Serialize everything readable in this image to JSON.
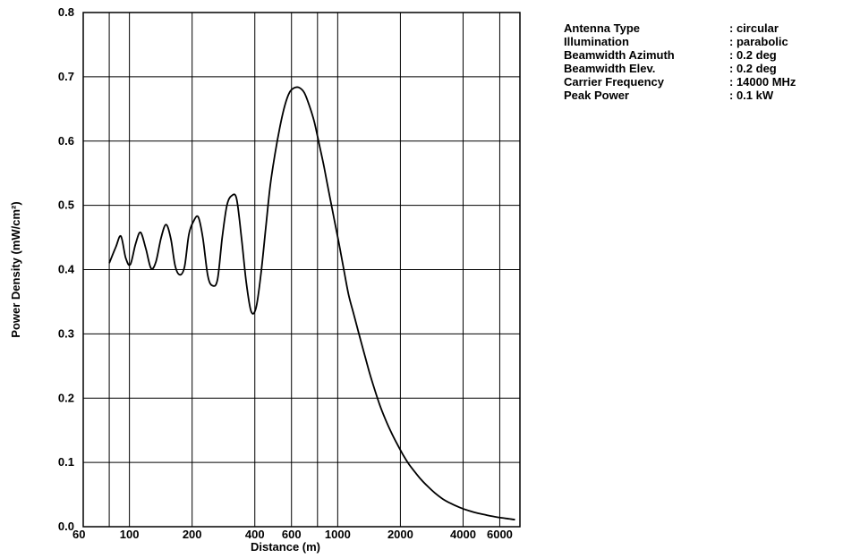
{
  "chart_data": {
    "type": "line",
    "title": "",
    "xlabel": "Distance (m)",
    "ylabel": "Power Density (mW/cm²)",
    "x_scale": "log",
    "xlim": [
      60,
      7500
    ],
    "ylim": [
      0,
      0.8
    ],
    "x_ticks": [
      {
        "value": 60,
        "label": "60"
      },
      {
        "value": 100,
        "label": "100"
      },
      {
        "value": 200,
        "label": "200"
      },
      {
        "value": 400,
        "label": "400"
      },
      {
        "value": 600,
        "label": "600"
      },
      {
        "value": 1000,
        "label": "1000"
      },
      {
        "value": 2000,
        "label": "2000"
      },
      {
        "value": 4000,
        "label": "4000"
      },
      {
        "value": 6000,
        "label": "6000"
      }
    ],
    "x_gridlines": [
      80,
      100,
      200,
      400,
      600,
      800,
      1000,
      2000,
      4000,
      6000
    ],
    "y_ticks": [
      {
        "value": 0.0,
        "label": "0.0"
      },
      {
        "value": 0.1,
        "label": "0.1"
      },
      {
        "value": 0.2,
        "label": "0.2"
      },
      {
        "value": 0.3,
        "label": "0.3"
      },
      {
        "value": 0.4,
        "label": "0.4"
      },
      {
        "value": 0.5,
        "label": "0.5"
      },
      {
        "value": 0.6,
        "label": "0.6"
      },
      {
        "value": 0.7,
        "label": "0.7"
      },
      {
        "value": 0.8,
        "label": "0.8"
      }
    ],
    "grid": true,
    "series": [
      {
        "color": "#000000",
        "x": [
          80,
          86,
          91,
          96,
          101,
          107,
          113,
          120,
          127,
          134,
          142,
          150,
          158,
          166,
          175,
          184,
          193,
          203,
          214,
          225,
          238,
          251,
          265,
          279,
          294,
          310,
          327,
          345,
          364,
          384,
          405,
          427,
          450,
          474,
          500,
          528,
          557,
          588,
          621,
          655,
          692,
          731,
          772,
          815,
          860,
          908,
          960,
          1015,
          1070,
          1130,
          1195,
          1265,
          1340,
          1420,
          1500,
          1590,
          1690,
          1800,
          1920,
          2050,
          2190,
          2350,
          2520,
          2720,
          2940,
          3200,
          3500,
          3850,
          4250,
          4700,
          5200,
          5800,
          6400,
          7100
        ],
        "y": [
          0.41,
          0.435,
          0.452,
          0.418,
          0.408,
          0.44,
          0.458,
          0.432,
          0.402,
          0.412,
          0.45,
          0.47,
          0.448,
          0.405,
          0.392,
          0.405,
          0.455,
          0.475,
          0.482,
          0.45,
          0.39,
          0.375,
          0.385,
          0.45,
          0.5,
          0.515,
          0.51,
          0.45,
          0.38,
          0.335,
          0.34,
          0.39,
          0.46,
          0.53,
          0.58,
          0.622,
          0.655,
          0.676,
          0.683,
          0.683,
          0.675,
          0.655,
          0.63,
          0.595,
          0.56,
          0.52,
          0.48,
          0.44,
          0.4,
          0.36,
          0.33,
          0.3,
          0.27,
          0.24,
          0.215,
          0.19,
          0.168,
          0.148,
          0.13,
          0.113,
          0.098,
          0.085,
          0.073,
          0.062,
          0.052,
          0.043,
          0.036,
          0.03,
          0.025,
          0.021,
          0.018,
          0.015,
          0.013,
          0.011
        ]
      }
    ]
  },
  "legend_params": [
    {
      "label": "Antenna Type",
      "value": ": circular"
    },
    {
      "label": "Illumination",
      "value": ": parabolic"
    },
    {
      "label": "Beamwidth Azimuth",
      "value": ": 0.2 deg"
    },
    {
      "label": "Beamwidth Elev.",
      "value": ": 0.2 deg"
    },
    {
      "label": "Carrier Frequency",
      "value": ": 14000 MHz"
    },
    {
      "label": "Peak Power",
      "value": ": 0.1 kW"
    }
  ]
}
